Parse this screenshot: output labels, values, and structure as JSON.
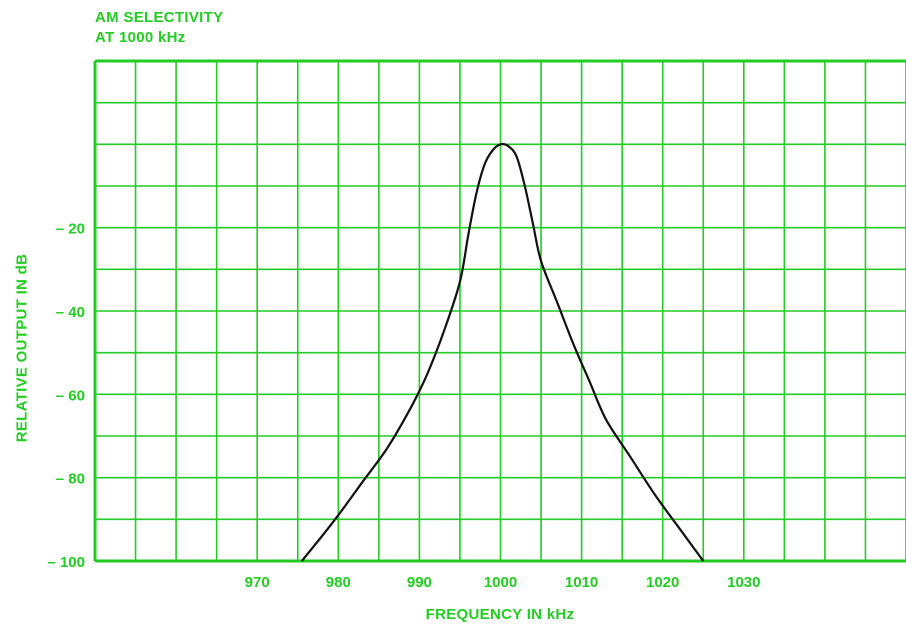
{
  "colors": {
    "accent": "#22cc22",
    "curve": "#111111",
    "background": "#ffffff"
  },
  "chart_data": {
    "type": "line",
    "title": "AM SELECTIVITY",
    "subtitle": "AT 1000 kHz",
    "xlabel": "FREQUENCY IN kHz",
    "ylabel": "RELATIVE OUTPUT IN dB",
    "x_tick_labels": [
      "970",
      "980",
      "990",
      "1000",
      "1010",
      "1020",
      "1030"
    ],
    "y_tick_labels": [
      "– 20",
      "– 40",
      "– 60",
      "– 80",
      "– 100"
    ],
    "y_ticks": [
      -20,
      -40,
      -60,
      -80,
      -100
    ],
    "x_ticks": [
      970,
      980,
      990,
      1000,
      1010,
      1020,
      1030
    ],
    "xlim": [
      950,
      1050
    ],
    "ylim": [
      -100,
      20
    ],
    "grid": true,
    "series": [
      {
        "x": [
          975.5,
          978,
          980,
          983,
          986,
          989,
          991,
          993,
          995,
          996,
          997,
          998,
          999,
          1000,
          1001,
          1002,
          1003,
          1004,
          1005,
          1007,
          1009,
          1011,
          1013,
          1016,
          1019,
          1022,
          1025
        ],
        "y": [
          -100,
          -94,
          -89,
          -81,
          -73,
          -63,
          -55,
          -45,
          -33,
          -22,
          -12,
          -5,
          -1.5,
          0,
          -0.5,
          -3,
          -10,
          -19,
          -28,
          -38,
          -48,
          -57,
          -66,
          -75,
          -84,
          -92,
          -100
        ]
      }
    ]
  }
}
